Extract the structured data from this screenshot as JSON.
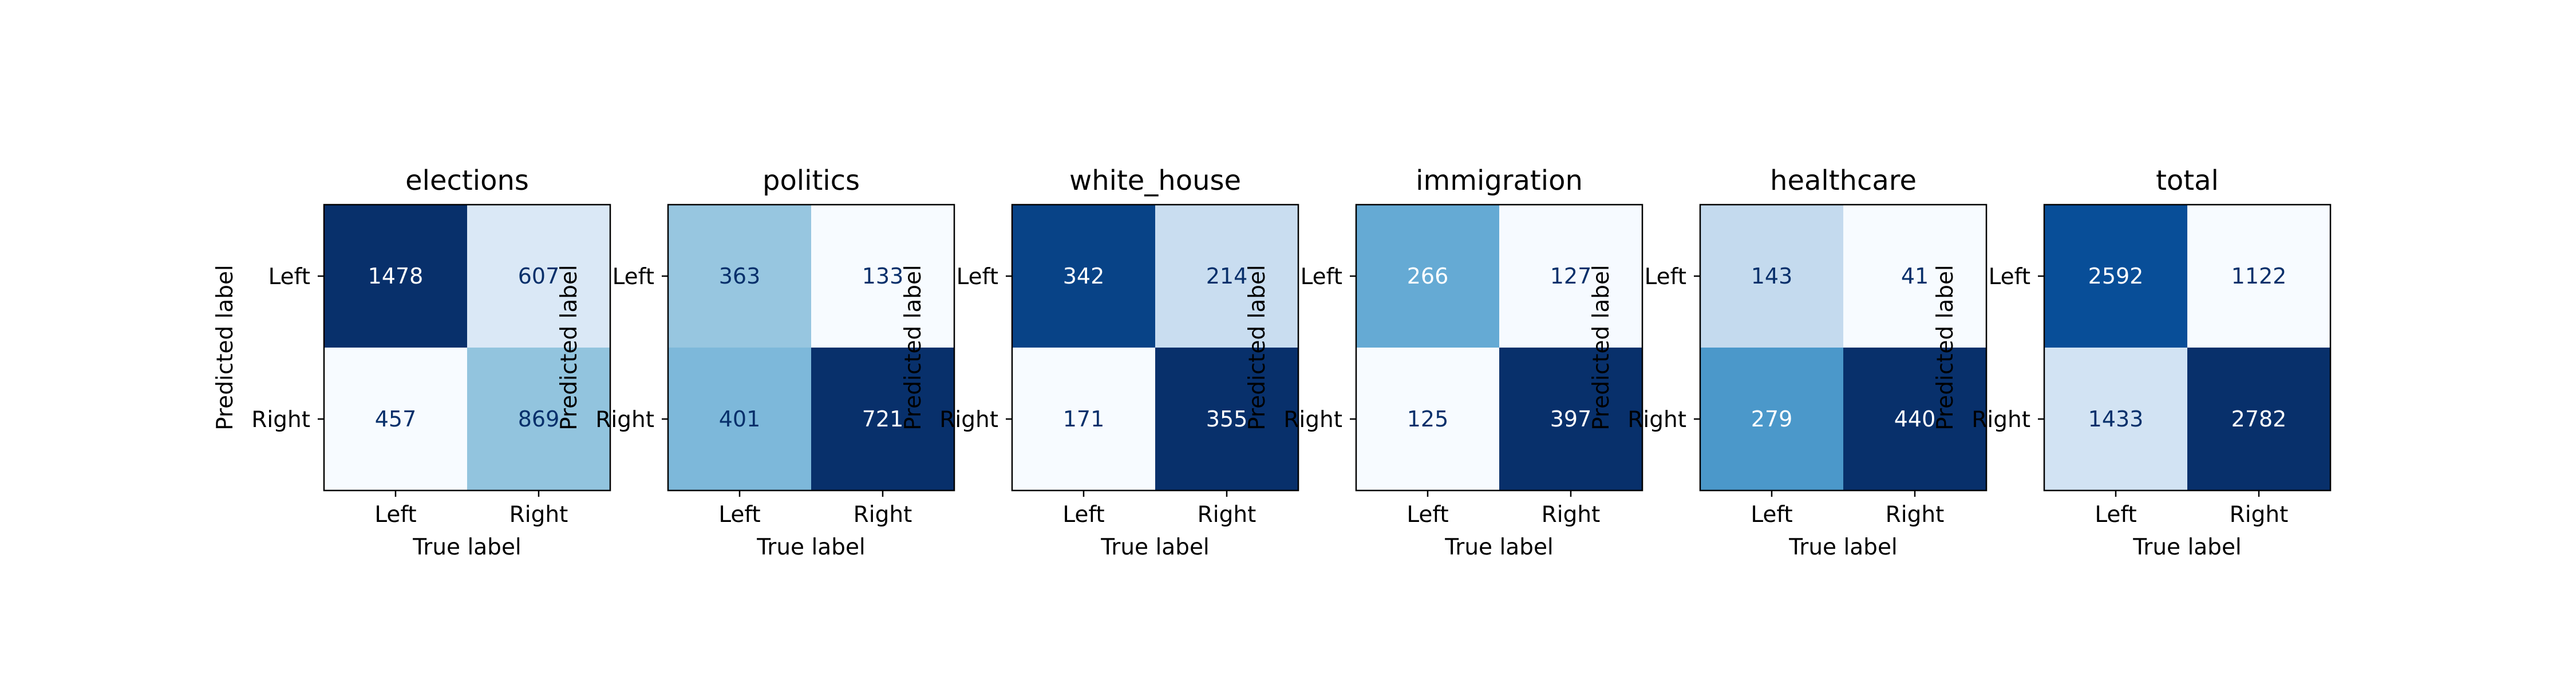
{
  "chart_data": [
    {
      "type": "heatmap",
      "title": "elections",
      "xlabel": "True label",
      "ylabel": "Predicted label",
      "x_categories": [
        "Left",
        "Right"
      ],
      "y_categories": [
        "Left",
        "Right"
      ],
      "values": [
        [
          1478,
          607
        ],
        [
          457,
          869
        ]
      ],
      "colormap": "Blues"
    },
    {
      "type": "heatmap",
      "title": "politics",
      "xlabel": "True label",
      "ylabel": "Predicted label",
      "x_categories": [
        "Left",
        "Right"
      ],
      "y_categories": [
        "Left",
        "Right"
      ],
      "values": [
        [
          363,
          133
        ],
        [
          401,
          721
        ]
      ],
      "colormap": "Blues"
    },
    {
      "type": "heatmap",
      "title": "white_house",
      "xlabel": "True label",
      "ylabel": "Predicted label",
      "x_categories": [
        "Left",
        "Right"
      ],
      "y_categories": [
        "Left",
        "Right"
      ],
      "values": [
        [
          342,
          214
        ],
        [
          171,
          355
        ]
      ],
      "colormap": "Blues"
    },
    {
      "type": "heatmap",
      "title": "immigration",
      "xlabel": "True label",
      "ylabel": "Predicted label",
      "x_categories": [
        "Left",
        "Right"
      ],
      "y_categories": [
        "Left",
        "Right"
      ],
      "values": [
        [
          266,
          127
        ],
        [
          125,
          397
        ]
      ],
      "colormap": "Blues"
    },
    {
      "type": "heatmap",
      "title": "healthcare",
      "xlabel": "True label",
      "ylabel": "Predicted label",
      "x_categories": [
        "Left",
        "Right"
      ],
      "y_categories": [
        "Left",
        "Right"
      ],
      "values": [
        [
          143,
          41
        ],
        [
          279,
          440
        ]
      ],
      "colormap": "Blues"
    },
    {
      "type": "heatmap",
      "title": "total",
      "xlabel": "True label",
      "ylabel": "Predicted label",
      "x_categories": [
        "Left",
        "Right"
      ],
      "y_categories": [
        "Left",
        "Right"
      ],
      "values": [
        [
          2592,
          1122
        ],
        [
          1433,
          2782
        ]
      ],
      "colormap": "Blues"
    }
  ]
}
